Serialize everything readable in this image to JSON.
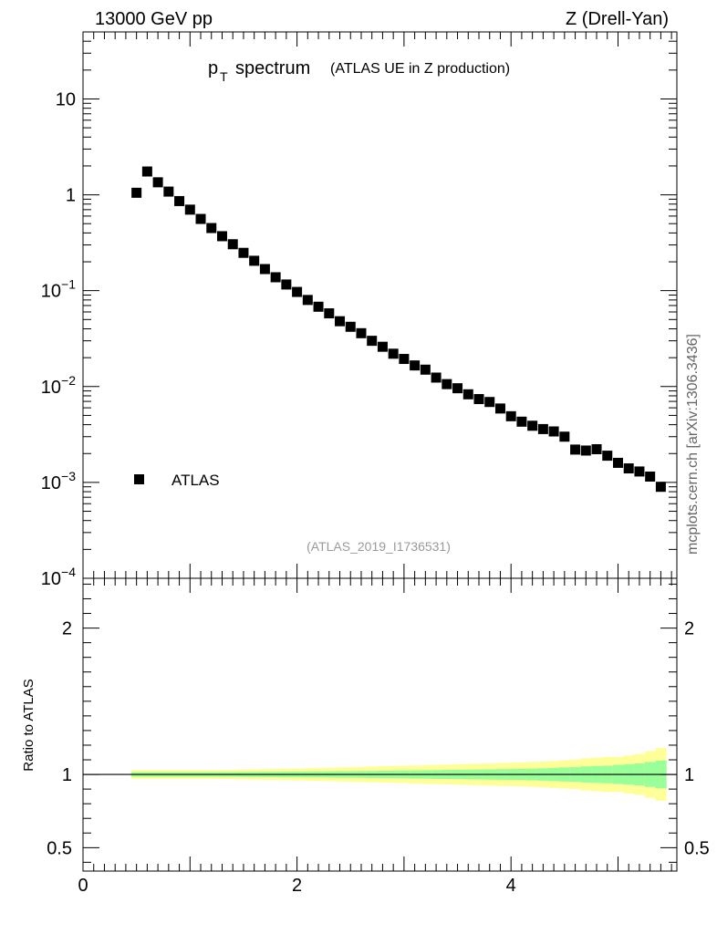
{
  "header": {
    "left": "13000 GeV pp",
    "right": "Z (Drell-Yan)"
  },
  "side_label": "mcplots.cern.ch [arXiv:1306.3436]",
  "chart_data": [
    {
      "type": "scatter",
      "panel": "main",
      "title_main": "p",
      "title_sub": "T",
      "title_word": "spectrum",
      "title_paren": "(ATLAS UE in Z production)",
      "reference": "(ATLAS_2019_I1736531)",
      "yscale": "log",
      "ylim": [
        0.0001,
        50
      ],
      "xlim": [
        0,
        5.55
      ],
      "grid": false,
      "legend": {
        "position": "bottom-left",
        "entries": [
          "ATLAS"
        ]
      },
      "y_tick_labels": [
        {
          "value": 10,
          "mantissa": "10",
          "exp": ""
        },
        {
          "value": 1,
          "mantissa": "1",
          "exp": ""
        },
        {
          "value": 0.1,
          "mantissa": "10",
          "exp": "−1"
        },
        {
          "value": 0.01,
          "mantissa": "10",
          "exp": "−2"
        },
        {
          "value": 0.001,
          "mantissa": "10",
          "exp": "−3"
        },
        {
          "value": 0.0001,
          "mantissa": "10",
          "exp": "−4"
        }
      ],
      "series": [
        {
          "name": "ATLAS",
          "color": "#000000",
          "x": [
            0.5,
            0.6,
            0.7,
            0.8,
            0.9,
            1.0,
            1.1,
            1.2,
            1.3,
            1.4,
            1.5,
            1.6,
            1.7,
            1.8,
            1.9,
            2.0,
            2.1,
            2.2,
            2.3,
            2.4,
            2.5,
            2.6,
            2.7,
            2.8,
            2.9,
            3.0,
            3.1,
            3.2,
            3.3,
            3.4,
            3.5,
            3.6,
            3.7,
            3.8,
            3.9,
            4.0,
            4.1,
            4.2,
            4.3,
            4.4,
            4.5,
            4.6,
            4.7,
            4.8,
            4.9,
            5.0,
            5.1,
            5.2,
            5.3,
            5.4
          ],
          "y": [
            1.05,
            1.75,
            1.35,
            1.08,
            0.86,
            0.7,
            0.56,
            0.45,
            0.37,
            0.305,
            0.248,
            0.205,
            0.168,
            0.138,
            0.116,
            0.097,
            0.08,
            0.068,
            0.058,
            0.048,
            0.042,
            0.036,
            0.03,
            0.026,
            0.022,
            0.0194,
            0.0166,
            0.015,
            0.0124,
            0.0106,
            0.0096,
            0.0083,
            0.0074,
            0.0069,
            0.0059,
            0.0049,
            0.0043,
            0.0039,
            0.0036,
            0.0034,
            0.003,
            0.0022,
            0.00215,
            0.00222,
            0.0019,
            0.0016,
            0.0014,
            0.0013,
            0.00115,
            0.0009
          ]
        }
      ]
    },
    {
      "type": "area",
      "panel": "ratio",
      "ylabel": "Ratio to ATLAS",
      "ylim": [
        0.34,
        2.34
      ],
      "xlim": [
        0,
        5.55
      ],
      "x_tick_labels": [
        "0",
        "2",
        "4"
      ],
      "y_tick_labels": [
        "0.5",
        "1",
        "2"
      ],
      "reference_line": 1,
      "band_colors": {
        "outer": "#ffff99",
        "inner": "#99ff99"
      },
      "bins": [
        0.45,
        0.55,
        0.65,
        0.75,
        0.85,
        0.95,
        1.05,
        1.15,
        1.25,
        1.35,
        1.45,
        1.55,
        1.65,
        1.75,
        1.85,
        1.95,
        2.05,
        2.15,
        2.25,
        2.35,
        2.45,
        2.55,
        2.65,
        2.75,
        2.85,
        2.95,
        3.05,
        3.15,
        3.25,
        3.35,
        3.45,
        3.55,
        3.65,
        3.75,
        3.85,
        3.95,
        4.05,
        4.15,
        4.25,
        4.35,
        4.45,
        4.55,
        4.65,
        4.75,
        4.85,
        4.95,
        5.05,
        5.15,
        5.25,
        5.35,
        5.45
      ],
      "outer_err": [
        0.03,
        0.03,
        0.03,
        0.03,
        0.03,
        0.03,
        0.03,
        0.03,
        0.03,
        0.032,
        0.034,
        0.035,
        0.037,
        0.038,
        0.04,
        0.041,
        0.043,
        0.045,
        0.046,
        0.048,
        0.05,
        0.052,
        0.054,
        0.056,
        0.058,
        0.06,
        0.062,
        0.064,
        0.066,
        0.068,
        0.07,
        0.072,
        0.074,
        0.076,
        0.078,
        0.08,
        0.082,
        0.085,
        0.088,
        0.092,
        0.096,
        0.1,
        0.11,
        0.115,
        0.12,
        0.12,
        0.13,
        0.14,
        0.16,
        0.18
      ],
      "inner_err": [
        0.015,
        0.015,
        0.015,
        0.015,
        0.015,
        0.015,
        0.015,
        0.015,
        0.016,
        0.016,
        0.017,
        0.017,
        0.018,
        0.018,
        0.019,
        0.019,
        0.02,
        0.02,
        0.021,
        0.022,
        0.022,
        0.023,
        0.024,
        0.025,
        0.026,
        0.027,
        0.028,
        0.029,
        0.03,
        0.031,
        0.032,
        0.033,
        0.034,
        0.035,
        0.036,
        0.037,
        0.038,
        0.04,
        0.042,
        0.045,
        0.048,
        0.05,
        0.055,
        0.058,
        0.06,
        0.065,
        0.07,
        0.075,
        0.085,
        0.095
      ]
    }
  ]
}
